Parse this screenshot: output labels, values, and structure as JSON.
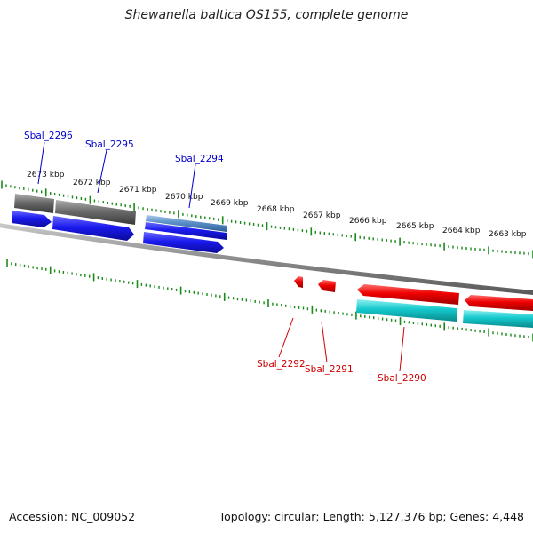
{
  "title": "Shewanella baltica OS155, complete genome",
  "footer": {
    "accession": "Accession: NC_009052",
    "summary": "Topology: circular; Length: 5,127,376 bp; Genes: 4,448"
  },
  "colors": {
    "forward_label": "#0000cc",
    "reverse_label": "#cc0000",
    "tick": "#1a8a1a",
    "backbone": "#8c8c8c",
    "gene_blue": "#1a1aee",
    "gene_gray": "#6b6b6b",
    "gene_lightblue": "#5a8fc8",
    "gene_red": "#ee0000",
    "gene_cyan": "#14c8cc"
  },
  "kbp_labels": [
    "2673 kbp",
    "2672 kbp",
    "2671 kbp",
    "2670 kbp",
    "2669 kbp",
    "2668 kbp",
    "2667 kbp",
    "2666 kbp",
    "2665 kbp",
    "2664 kbp",
    "2663 kbp"
  ],
  "gene_labels": [
    {
      "text": "Sbal_2296",
      "strand": "forward"
    },
    {
      "text": "Sbal_2295",
      "strand": "forward"
    },
    {
      "text": "Sbal_2294",
      "strand": "forward"
    },
    {
      "text": "Sbal_2292",
      "strand": "reverse"
    },
    {
      "text": "Sbal_2291",
      "strand": "reverse"
    },
    {
      "text": "Sbal_2290",
      "strand": "reverse"
    }
  ]
}
